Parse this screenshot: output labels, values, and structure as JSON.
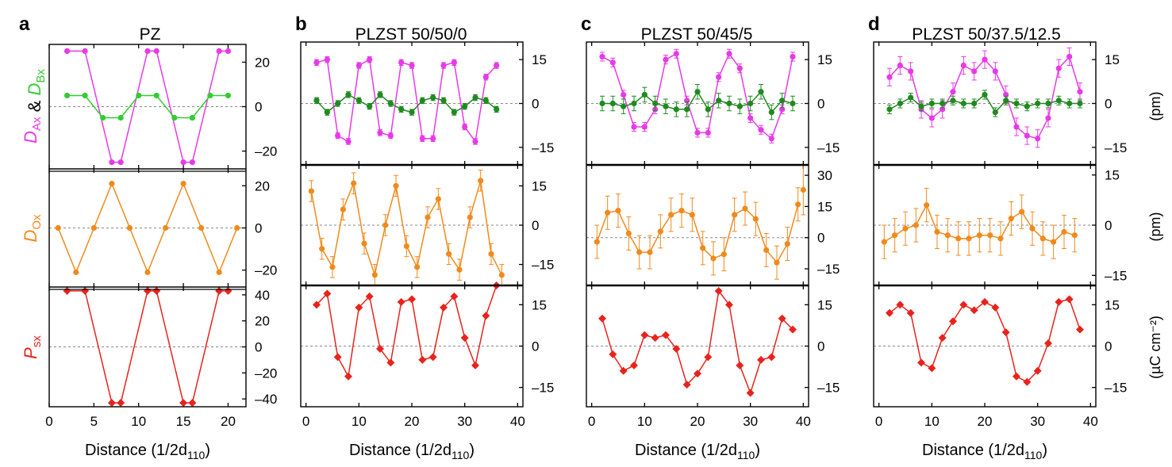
{
  "figure": {
    "x_axis_label": "Distance (1/2d",
    "x_axis_sub": "110",
    "x_axis_close": ")"
  },
  "row_labels": [
    {
      "parts": [
        [
          "D",
          "Ax",
          "#e839e8"
        ],
        [
          " & ",
          "",
          "#000000"
        ],
        [
          "D",
          "Bx",
          "#33cc33"
        ]
      ]
    },
    {
      "parts": [
        [
          "D",
          "Ox",
          "#f08a1c"
        ]
      ]
    },
    {
      "parts": [
        [
          "P",
          "sx",
          "#e8231c"
        ]
      ]
    }
  ],
  "units": [
    "(pm)",
    "(pm)",
    "(µC cm⁻²)"
  ],
  "colors": {
    "magenta": "#e839e8",
    "green": "#33cc33",
    "darkgreen": "#1f8a1f",
    "orange": "#f08a1c",
    "red": "#e8231c"
  },
  "chart_data": [
    {
      "type": "line",
      "panel": "a",
      "title": "PZ",
      "xlim": [
        0,
        22
      ],
      "xticks": [
        0,
        5,
        10,
        15,
        20
      ],
      "rows": [
        {
          "ylim": [
            -28,
            28
          ],
          "yticks": [
            20,
            0,
            -20
          ],
          "ytick_labels": [
            "20",
            "0",
            "–20"
          ],
          "series": [
            {
              "color_key": "magenta",
              "marker": "circle",
              "x": [
                2,
                4,
                7,
                8,
                11,
                12,
                15,
                16,
                19,
                20
              ],
              "y": [
                25,
                25,
                -25,
                -25,
                25,
                25,
                -25,
                -25,
                25,
                25
              ]
            },
            {
              "color_key": "green",
              "marker": "circle",
              "x": [
                2,
                4,
                6,
                8,
                10,
                12,
                14,
                16,
                18,
                20
              ],
              "y": [
                5,
                5,
                -5,
                -5,
                5,
                5,
                -5,
                -5,
                5,
                5
              ]
            }
          ]
        },
        {
          "ylim": [
            -28,
            28
          ],
          "yticks": [
            20,
            0,
            -20
          ],
          "ytick_labels": [
            "20",
            "0",
            "–20"
          ],
          "series": [
            {
              "color_key": "orange",
              "marker": "circle",
              "x": [
                1,
                3,
                5,
                7,
                9,
                11,
                13,
                15,
                17,
                19,
                21
              ],
              "y": [
                0,
                -21,
                0,
                21,
                0,
                -21,
                0,
                21,
                0,
                -21,
                0
              ]
            }
          ]
        },
        {
          "ylim": [
            -46,
            46
          ],
          "yticks": [
            40,
            20,
            0,
            -20,
            -40
          ],
          "ytick_labels": [
            "40",
            "20",
            "0",
            "–20",
            "–40"
          ],
          "series": [
            {
              "color_key": "red",
              "marker": "diamond",
              "x": [
                2,
                4,
                7,
                8,
                11,
                12,
                15,
                16,
                19,
                20
              ],
              "y": [
                43,
                43,
                -43,
                -43,
                43,
                43,
                -43,
                -43,
                43,
                43
              ]
            }
          ]
        }
      ]
    },
    {
      "type": "line",
      "panel": "b",
      "title": "PLZST 50/50/0",
      "xlim": [
        -1,
        41
      ],
      "xticks": [
        0,
        10,
        20,
        30,
        40
      ],
      "rows": [
        {
          "ylim": [
            -21,
            21
          ],
          "yticks": [
            15,
            0,
            -15
          ],
          "ytick_labels": [
            "15",
            "0",
            "–15"
          ],
          "series": [
            {
              "color_key": "magenta",
              "marker": "circle",
              "error": 1,
              "x": [
                2,
                4,
                6,
                8,
                10,
                12,
                14,
                16,
                18,
                20,
                22,
                24,
                26,
                28,
                30,
                32,
                34,
                36
              ],
              "y": [
                14,
                15,
                -11,
                -13,
                13,
                15,
                -10,
                -11,
                14,
                13,
                -12,
                -12,
                13,
                14,
                -8,
                -13,
                9,
                13
              ]
            },
            {
              "color_key": "darkgreen",
              "marker": "circle",
              "error": 1,
              "x": [
                2,
                4,
                6,
                8,
                10,
                12,
                14,
                16,
                18,
                20,
                22,
                24,
                26,
                28,
                30,
                32,
                34,
                36
              ],
              "y": [
                1,
                -3,
                0,
                3,
                1,
                -1,
                3,
                0,
                -2,
                -3,
                1,
                2,
                1,
                -3,
                -1,
                2,
                1,
                -2
              ]
            }
          ]
        },
        {
          "ylim": [
            -23,
            23
          ],
          "yticks": [
            15,
            0,
            -15
          ],
          "ytick_labels": [
            "15",
            "0",
            "–15"
          ],
          "series": [
            {
              "color_key": "orange",
              "marker": "circle",
              "error": 4,
              "x": [
                1,
                3,
                5,
                7,
                9,
                11,
                13,
                15,
                17,
                19,
                21,
                23,
                25,
                27,
                29,
                31,
                33,
                35,
                37
              ],
              "y": [
                13,
                -9,
                -16,
                6,
                16,
                -7,
                -19,
                0,
                15,
                -8,
                -16,
                3,
                10,
                -11,
                -17,
                3,
                17,
                -11,
                -19
              ]
            }
          ]
        },
        {
          "ylim": [
            -22,
            22
          ],
          "yticks": [
            15,
            0,
            -15
          ],
          "ytick_labels": [
            "15",
            "0",
            "–15"
          ],
          "series": [
            {
              "color_key": "red",
              "marker": "diamond",
              "x": [
                2,
                4,
                6,
                8,
                10,
                12,
                14,
                16,
                18,
                20,
                22,
                24,
                26,
                28,
                30,
                32,
                34,
                36
              ],
              "y": [
                15,
                19,
                -4,
                -11,
                14,
                18,
                -1,
                -6,
                16,
                17,
                -5,
                -4,
                14,
                18,
                3,
                -7,
                11,
                22
              ]
            }
          ]
        }
      ]
    },
    {
      "type": "line",
      "panel": "c",
      "title": "PLZST 50/45/5",
      "xlim": [
        -1,
        41
      ],
      "xticks": [
        0,
        10,
        20,
        30,
        40
      ],
      "rows": [
        {
          "ylim": [
            -21,
            21
          ],
          "yticks": [
            15,
            0,
            -15
          ],
          "ytick_labels": [
            "15",
            "0",
            "–15"
          ],
          "series": [
            {
              "color_key": "magenta",
              "marker": "circle",
              "error": 1.5,
              "x": [
                2,
                4,
                6,
                8,
                10,
                12,
                14,
                16,
                18,
                20,
                22,
                24,
                26,
                28,
                30,
                32,
                34,
                36,
                38
              ],
              "y": [
                16,
                14,
                3,
                -8,
                -8,
                -2,
                15,
                17,
                1,
                -10,
                -10,
                9,
                17,
                12,
                -5,
                -9,
                -12,
                -2,
                16
              ]
            },
            {
              "color_key": "darkgreen",
              "marker": "circle",
              "error": 2.5,
              "x": [
                2,
                4,
                6,
                8,
                10,
                12,
                14,
                16,
                18,
                20,
                22,
                24,
                26,
                28,
                30,
                32,
                34,
                36,
                38
              ],
              "y": [
                0,
                0,
                -1,
                0,
                3,
                0,
                -1,
                -2,
                -2,
                4,
                -2,
                1,
                0,
                -1,
                0,
                4,
                -3,
                1,
                0
              ]
            }
          ]
        },
        {
          "ylim": [
            -23,
            35
          ],
          "yticks": [
            30,
            15,
            0,
            -15
          ],
          "ytick_labels": [
            "30",
            "15",
            "0",
            "–15"
          ],
          "series": [
            {
              "color_key": "orange",
              "marker": "circle",
              "error": 8,
              "x": [
                1,
                3,
                5,
                7,
                9,
                11,
                13,
                15,
                17,
                19,
                21,
                23,
                25,
                27,
                29,
                31,
                33,
                35,
                37,
                39
              ],
              "y": [
                -2,
                12,
                13,
                2,
                -7,
                -7,
                3,
                11,
                13,
                11,
                -5,
                -10,
                -8,
                11,
                14,
                9,
                -6,
                -12,
                -3,
                16
              ]
            },
            {
              "color_key": "orange",
              "marker": "circle",
              "error": 12,
              "x": [
                40
              ],
              "y": [
                23
              ]
            }
          ]
        },
        {
          "ylim": [
            -22,
            22
          ],
          "yticks": [
            15,
            0,
            -15
          ],
          "ytick_labels": [
            "15",
            "0",
            "–15"
          ],
          "series": [
            {
              "color_key": "red",
              "marker": "diamond",
              "x": [
                2,
                4,
                6,
                8,
                10,
                12,
                14,
                16,
                18,
                20,
                22,
                24,
                26,
                28,
                30,
                32,
                34,
                36,
                38
              ],
              "y": [
                10,
                -3,
                -9,
                -7,
                4,
                3,
                4,
                -1,
                -14,
                -10,
                -4,
                20,
                15,
                -7,
                -17,
                -5,
                -4,
                10,
                6
              ]
            }
          ]
        }
      ]
    },
    {
      "type": "line",
      "panel": "d",
      "title": "PLZST 50/37.5/12.5",
      "xlim": [
        -1,
        41
      ],
      "xticks": [
        0,
        10,
        20,
        30,
        40
      ],
      "rows": [
        {
          "ylim": [
            -21,
            21
          ],
          "yticks": [
            15,
            0,
            -15
          ],
          "ytick_labels": [
            "15",
            "0",
            "–15"
          ],
          "series": [
            {
              "color_key": "magenta",
              "marker": "circle",
              "error": 3,
              "x": [
                2,
                4,
                6,
                8,
                10,
                12,
                14,
                16,
                18,
                20,
                22,
                24,
                26,
                28,
                30,
                32,
                34,
                36,
                38
              ],
              "y": [
                9,
                13,
                11,
                -2,
                -5,
                -2,
                4,
                13,
                11,
                15,
                11,
                3,
                -8,
                -11,
                -12,
                -5,
                12,
                16,
                4
              ]
            },
            {
              "color_key": "darkgreen",
              "marker": "circle",
              "error": 1.5,
              "x": [
                2,
                4,
                6,
                8,
                10,
                12,
                14,
                16,
                18,
                20,
                22,
                24,
                26,
                28,
                30,
                32,
                34,
                36,
                38
              ],
              "y": [
                -2,
                0,
                2,
                -1,
                0,
                0,
                1,
                0,
                0,
                3,
                -3,
                1,
                0,
                -1,
                0,
                0,
                1,
                0,
                0
              ]
            }
          ]
        },
        {
          "ylim": [
            -18,
            18
          ],
          "yticks": [
            15,
            0,
            -15
          ],
          "ytick_labels": [
            "15",
            "0",
            "–15"
          ],
          "series": [
            {
              "color_key": "orange",
              "marker": "circle",
              "error": 5,
              "x": [
                1,
                3,
                5,
                7,
                9,
                11,
                13,
                15,
                17,
                19,
                21,
                23,
                25,
                27,
                29,
                31,
                33,
                35,
                37
              ],
              "y": [
                -5,
                -3,
                -1,
                0,
                6,
                -2,
                -3,
                -4,
                -4,
                -3,
                -3,
                -4,
                2,
                4,
                -1,
                -4,
                -5,
                -2,
                -3
              ]
            }
          ]
        },
        {
          "ylim": [
            -22,
            22
          ],
          "yticks": [
            15,
            0,
            -15
          ],
          "ytick_labels": [
            "15",
            "0",
            "–15"
          ],
          "series": [
            {
              "color_key": "red",
              "marker": "diamond",
              "x": [
                2,
                4,
                6,
                8,
                10,
                12,
                14,
                16,
                18,
                20,
                22,
                24,
                26,
                28,
                30,
                32,
                34,
                36,
                38
              ],
              "y": [
                12,
                15,
                12,
                -6,
                -8,
                3,
                9,
                15,
                13,
                16,
                14,
                5,
                -11,
                -13,
                -9,
                1,
                16,
                17,
                6
              ]
            }
          ]
        }
      ]
    }
  ]
}
